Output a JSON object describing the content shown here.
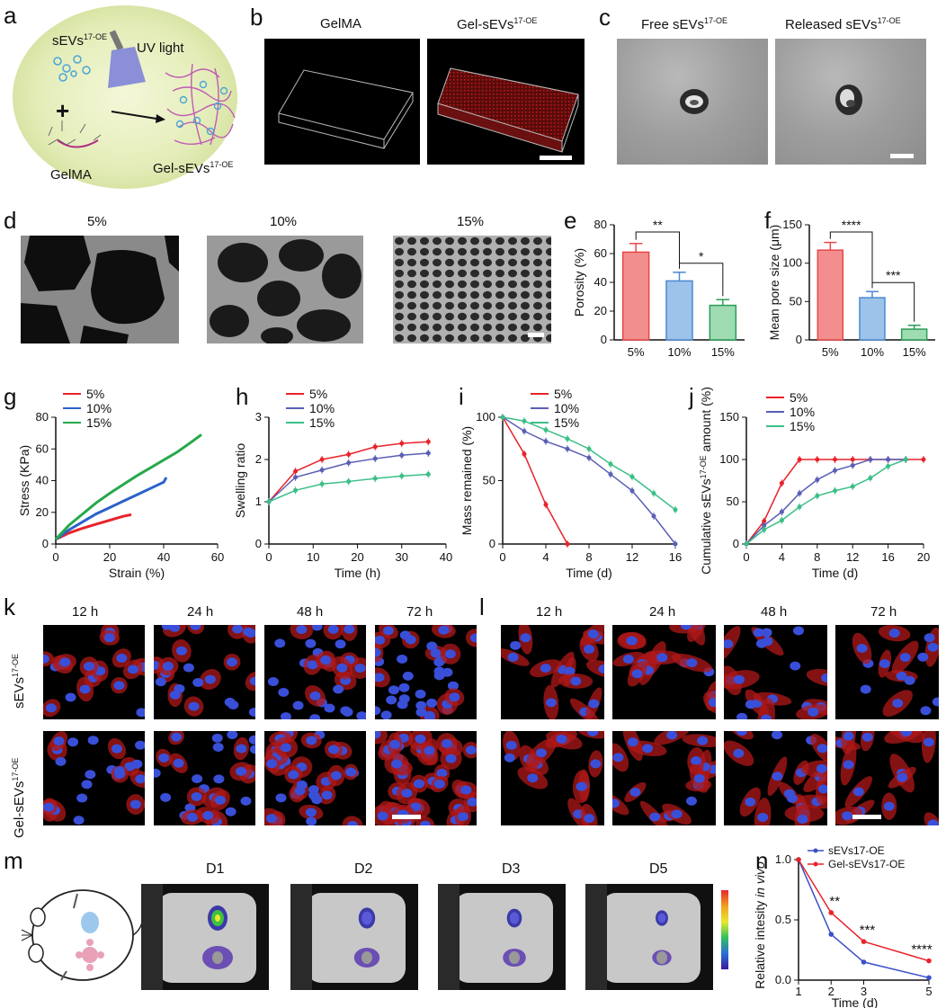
{
  "panel_letters": {
    "a": "a",
    "b": "b",
    "c": "c",
    "d": "d",
    "e": "e",
    "f": "f",
    "g": "g",
    "h": "h",
    "i": "i",
    "j": "j",
    "k": "k",
    "l": "l",
    "m": "m",
    "n": "n"
  },
  "panel_a": {
    "sevs_label": "sEVs",
    "sevs_sup": "17-OE",
    "uv_label": "UV light",
    "plus": "+",
    "gelma_label": "GelMA",
    "gel_sevs_label": "Gel-sEVs",
    "gel_sevs_sup": "17-OE"
  },
  "panel_b": {
    "left_title": "GelMA",
    "right_title": "Gel-sEVs",
    "right_title_sup": "17-OE"
  },
  "panel_c": {
    "left_title": "Free sEVs",
    "left_title_sup": "17-OE",
    "right_title": "Released sEVs",
    "right_title_sup": "17-OE"
  },
  "panel_d": {
    "titles": [
      "5%",
      "10%",
      "15%"
    ]
  },
  "panel_k": {
    "times": [
      "12 h",
      "24 h",
      "48 h",
      "72 h"
    ],
    "row1": "sEVs",
    "row1_sup": "17-OE",
    "row2": "Gel-sEVs",
    "row2_sup": "17-OE"
  },
  "panel_l": {
    "times": [
      "12 h",
      "24 h",
      "48 h",
      "72 h"
    ]
  },
  "panel_m": {
    "days": [
      "D1",
      "D2",
      "D3",
      "D5"
    ]
  },
  "chart_data": [
    {
      "panel": "e",
      "type": "bar",
      "categories": [
        "5%",
        "10%",
        "15%"
      ],
      "values": [
        61,
        41,
        24
      ],
      "errors": [
        6,
        6,
        4
      ],
      "colors": [
        "#f28e8e",
        "#9dc3ea",
        "#9fdcb1"
      ],
      "edge_colors": [
        "#e8474a",
        "#4a89d1",
        "#2a9d55"
      ],
      "xlabel": "",
      "ylabel": "Porosity (%)",
      "ylim": [
        0,
        80
      ],
      "yticks": [
        0,
        20,
        40,
        60,
        80
      ],
      "significance": [
        "**",
        "*"
      ]
    },
    {
      "panel": "f",
      "type": "bar",
      "categories": [
        "5%",
        "10%",
        "15%"
      ],
      "values": [
        117,
        55,
        14
      ],
      "errors": [
        10,
        8,
        5
      ],
      "colors": [
        "#f28e8e",
        "#9dc3ea",
        "#9fdcb1"
      ],
      "edge_colors": [
        "#e8474a",
        "#4a89d1",
        "#2a9d55"
      ],
      "xlabel": "",
      "ylabel": "Mean pore size (μm)",
      "ylim": [
        0,
        150
      ],
      "yticks": [
        0,
        50,
        100,
        150
      ],
      "significance": [
        "****",
        "***"
      ]
    },
    {
      "panel": "g",
      "type": "line",
      "xlabel": "Strain (%)",
      "ylabel": "Stress (KPa)",
      "xlim": [
        0,
        60
      ],
      "ylim": [
        0,
        80
      ],
      "xticks": [
        0,
        20,
        40,
        60
      ],
      "yticks": [
        0,
        20,
        40,
        60,
        80
      ],
      "series": [
        {
          "name": "5%",
          "color": "#e8232a",
          "x": [
            0,
            5,
            10,
            15,
            20,
            25,
            28
          ],
          "y": [
            3,
            7,
            10,
            12.5,
            15,
            17.5,
            18.5
          ]
        },
        {
          "name": "10%",
          "color": "#2a62c9",
          "x": [
            0,
            5,
            10,
            15,
            20,
            25,
            30,
            35,
            40,
            41
          ],
          "y": [
            3,
            9,
            14,
            19,
            23,
            27,
            31,
            35,
            39,
            42
          ]
        },
        {
          "name": "15%",
          "color": "#27a84a",
          "x": [
            0,
            5,
            10,
            15,
            20,
            25,
            30,
            35,
            40,
            45,
            50,
            54
          ],
          "y": [
            3,
            12,
            19,
            26,
            32,
            37.5,
            43,
            48,
            53,
            58,
            64,
            69
          ]
        }
      ]
    },
    {
      "panel": "h",
      "type": "line",
      "xlabel": "Time (h)",
      "ylabel": "Swelling ratio",
      "xlim": [
        0,
        40
      ],
      "ylim": [
        0,
        3
      ],
      "xticks": [
        0,
        10,
        20,
        30,
        40
      ],
      "yticks": [
        0,
        1,
        2,
        3
      ],
      "series": [
        {
          "name": "5%",
          "color": "#e8232a",
          "x": [
            0,
            6,
            12,
            18,
            24,
            30,
            36
          ],
          "y": [
            1.0,
            1.72,
            2.0,
            2.12,
            2.3,
            2.38,
            2.42
          ]
        },
        {
          "name": "10%",
          "color": "#5a5fb5",
          "x": [
            0,
            6,
            12,
            18,
            24,
            30,
            36
          ],
          "y": [
            1.0,
            1.58,
            1.75,
            1.92,
            2.02,
            2.1,
            2.15
          ]
        },
        {
          "name": "15%",
          "color": "#3bbf86",
          "x": [
            0,
            6,
            12,
            18,
            24,
            30,
            36
          ],
          "y": [
            1.0,
            1.27,
            1.42,
            1.48,
            1.55,
            1.61,
            1.65
          ]
        }
      ]
    },
    {
      "panel": "i",
      "type": "line",
      "xlabel": "Time (d)",
      "ylabel": "Mass remained (%)",
      "xlim": [
        0,
        16
      ],
      "ylim": [
        0,
        100
      ],
      "xticks": [
        0,
        4,
        8,
        12,
        16
      ],
      "yticks": [
        0,
        50,
        100
      ],
      "series": [
        {
          "name": "5%",
          "color": "#e8232a",
          "x": [
            0,
            2,
            4,
            6
          ],
          "y": [
            100,
            71,
            31,
            0
          ]
        },
        {
          "name": "10%",
          "color": "#5a5fb5",
          "x": [
            0,
            2,
            4,
            6,
            8,
            10,
            12,
            14,
            16
          ],
          "y": [
            100,
            89,
            81,
            75,
            68,
            55,
            42,
            22,
            0
          ]
        },
        {
          "name": "15%",
          "color": "#3bbf86",
          "x": [
            0,
            2,
            4,
            6,
            8,
            10,
            12,
            14,
            16
          ],
          "y": [
            100,
            97,
            90,
            83,
            75,
            63,
            53,
            40,
            27
          ]
        }
      ]
    },
    {
      "panel": "j",
      "type": "line",
      "xlabel": "Time (d)",
      "ylabel": "Cumulative sEVs17-OE amount (%)",
      "xlim": [
        0,
        20
      ],
      "ylim": [
        0,
        150
      ],
      "xticks": [
        0,
        4,
        8,
        12,
        16,
        20
      ],
      "yticks": [
        0,
        50,
        100,
        150
      ],
      "series": [
        {
          "name": "5%",
          "color": "#e8232a",
          "x": [
            0,
            2,
            4,
            6,
            8,
            10,
            12,
            14,
            16,
            18,
            20
          ],
          "y": [
            0,
            27,
            72,
            100,
            100,
            100,
            100,
            100,
            100,
            100,
            100
          ]
        },
        {
          "name": "10%",
          "color": "#5a5fb5",
          "x": [
            0,
            2,
            4,
            6,
            8,
            10,
            12,
            14,
            16,
            18
          ],
          "y": [
            0,
            22,
            38,
            60,
            76,
            87,
            93,
            100,
            100,
            100
          ]
        },
        {
          "name": "15%",
          "color": "#3bbf86",
          "x": [
            0,
            2,
            4,
            6,
            8,
            10,
            12,
            14,
            16,
            18
          ],
          "y": [
            0,
            17,
            28,
            44,
            57,
            63,
            68,
            78,
            92,
            100
          ]
        }
      ]
    },
    {
      "panel": "n",
      "type": "line",
      "xlabel": "Time (d)",
      "ylabel": "Relative intesity in vivo",
      "xlim": [
        1,
        5
      ],
      "ylim": [
        0,
        1
      ],
      "xticks": [
        1,
        2,
        3,
        5
      ],
      "yticks": [
        0.0,
        0.5,
        1.0
      ],
      "series": [
        {
          "name": "sEVs17-OE",
          "color": "#3a4fc9",
          "x": [
            1,
            2,
            3,
            5
          ],
          "y": [
            1.0,
            0.38,
            0.15,
            0.02
          ]
        },
        {
          "name": "Gel-sEVs17-OE",
          "color": "#e8232a",
          "x": [
            1,
            2,
            3,
            5
          ],
          "y": [
            1.0,
            0.56,
            0.32,
            0.16
          ]
        }
      ],
      "significance": [
        {
          "x": 2,
          "label": "**"
        },
        {
          "x": 3,
          "label": "***"
        },
        {
          "x": 5,
          "label": "****"
        }
      ]
    }
  ]
}
